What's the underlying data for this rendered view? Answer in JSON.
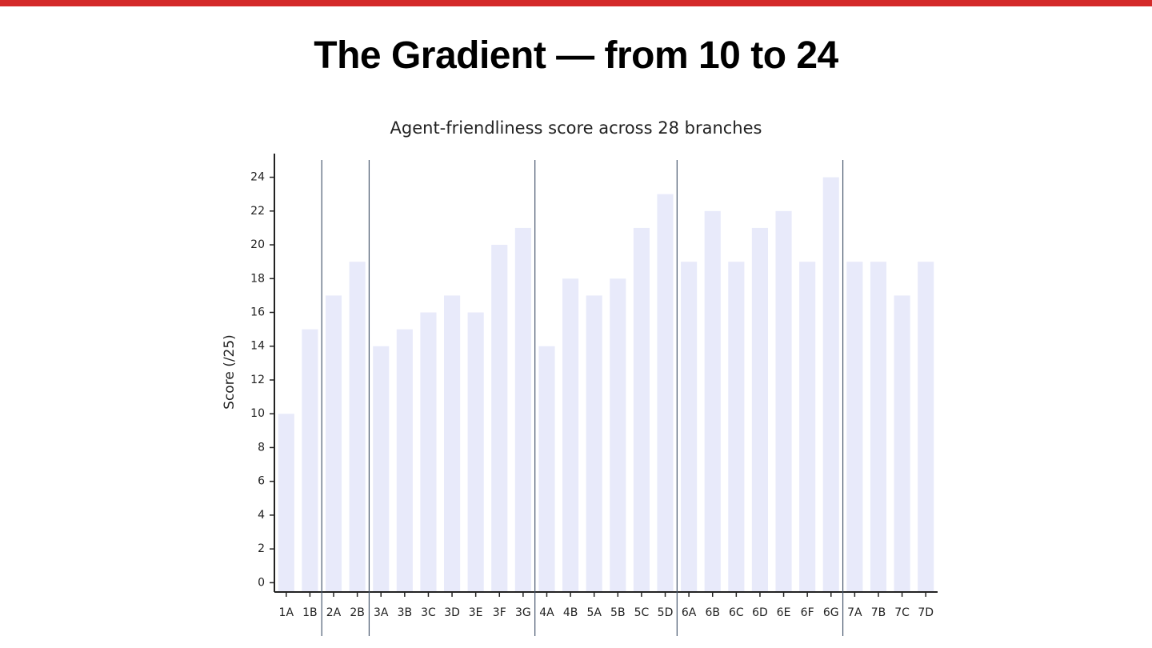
{
  "heading": "The Gradient — from 10 to 24",
  "chart_data": {
    "type": "bar",
    "title": "Agent-friendliness score across 28 branches",
    "y_label": "Score (/25)",
    "categories": [
      "1A",
      "1B",
      "2A",
      "2B",
      "3A",
      "3B",
      "3C",
      "3D",
      "3E",
      "3F",
      "3G",
      "4A",
      "4B",
      "5A",
      "5B",
      "5C",
      "5D",
      "6A",
      "6B",
      "6C",
      "6D",
      "6E",
      "6F",
      "6G",
      "7A",
      "7B",
      "7C",
      "7D"
    ],
    "values": [
      10,
      15,
      17,
      19,
      14,
      15,
      16,
      17,
      16,
      20,
      21,
      14,
      18,
      17,
      18,
      21,
      23,
      19,
      22,
      19,
      21,
      22,
      19,
      24,
      19,
      19,
      17,
      19
    ],
    "color": "#e8eafa",
    "ylim": [
      -0.55,
      25.4
    ],
    "yticks": [
      0,
      2,
      4,
      6,
      8,
      10,
      12,
      14,
      16,
      18,
      20,
      22,
      24
    ],
    "separators_after": [
      1,
      3,
      10,
      16,
      23
    ],
    "separator_color": "#4a5a70"
  }
}
